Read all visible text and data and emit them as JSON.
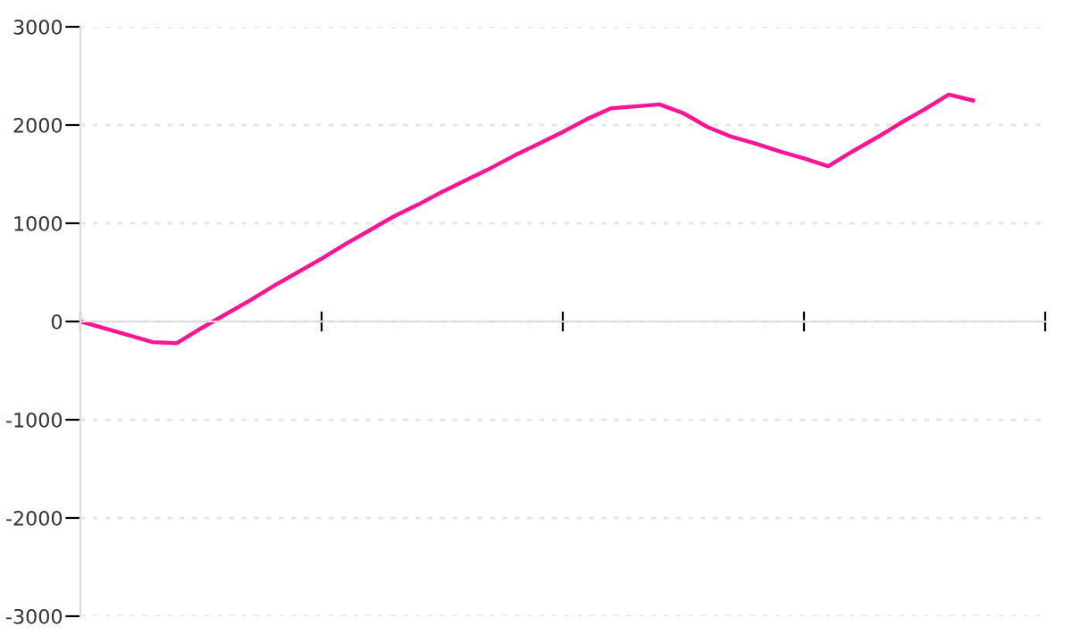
{
  "chart_data": {
    "type": "line",
    "categories": [
      null,
      null,
      null,
      null,
      null,
      null,
      null,
      null,
      null,
      null,
      null,
      null,
      null,
      null,
      null,
      null,
      null,
      null,
      null,
      null,
      null,
      null,
      null,
      null,
      null,
      null,
      null,
      null,
      null,
      null,
      null,
      null,
      null,
      null,
      null,
      null,
      null,
      null,
      null,
      null,
      null
    ],
    "series": [
      {
        "color": "#ff1493",
        "values": [
          0,
          -70,
          -140,
          -210,
          -220,
          -70,
          70,
          210,
          360,
          500,
          640,
          790,
          930,
          1070,
          1190,
          1320,
          1440,
          1560,
          1690,
          1810,
          1930,
          2060,
          2170,
          2190,
          2210,
          2120,
          1980,
          1880,
          1810,
          1730,
          1660,
          1580,
          1730,
          1870,
          2020,
          2160,
          2310,
          2250,
          null,
          null,
          null
        ]
      }
    ],
    "ylim": [
      -3000,
      3000
    ],
    "yticks": [
      -3000,
      -2000,
      -1000,
      0,
      1000,
      2000,
      3000
    ],
    "grid": "y",
    "marker": "none",
    "line_style": "solid"
  }
}
